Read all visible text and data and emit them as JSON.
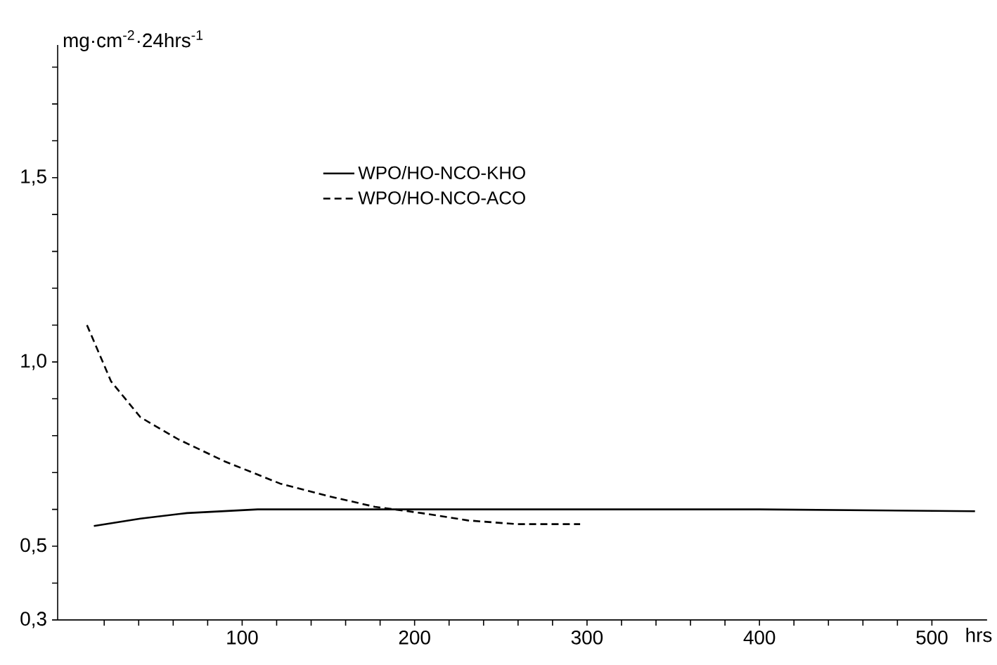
{
  "chart_data": {
    "type": "line",
    "ylabel": "mg·cm$^{-2}$·24hrs$^{-1}$",
    "xlabel": "hrs",
    "xlim": [
      -7,
      532
    ],
    "ylim": [
      0.3,
      1.86
    ],
    "xticks": [
      {
        "value": 20,
        "label": null
      },
      {
        "value": 40,
        "label": null
      },
      {
        "value": 60,
        "label": null
      },
      {
        "value": 80,
        "label": null
      },
      100,
      {
        "value": 120,
        "label": null
      },
      {
        "value": 140,
        "label": null
      },
      {
        "value": 160,
        "label": null
      },
      {
        "value": 180,
        "label": null
      },
      200,
      {
        "value": 220,
        "label": null
      },
      {
        "value": 240,
        "label": null
      },
      {
        "value": 260,
        "label": null
      },
      {
        "value": 280,
        "label": null
      },
      300,
      {
        "value": 320,
        "label": null
      },
      {
        "value": 340,
        "label": null
      },
      {
        "value": 360,
        "label": null
      },
      {
        "value": 380,
        "label": null
      },
      400,
      {
        "value": 420,
        "label": null
      },
      {
        "value": 440,
        "label": null
      },
      {
        "value": 460,
        "label": null
      },
      {
        "value": 480,
        "label": null
      },
      500
    ],
    "yticks": [
      {
        "value": 0.3,
        "label": "0,3"
      },
      {
        "value": 0.4,
        "label": null
      },
      {
        "value": 0.5,
        "label": "0,5"
      },
      {
        "value": 0.6,
        "label": null
      },
      {
        "value": 0.7,
        "label": null
      },
      {
        "value": 0.8,
        "label": null
      },
      {
        "value": 0.9,
        "label": null
      },
      {
        "value": 1.0,
        "label": "1,0"
      },
      {
        "value": 1.1,
        "label": null
      },
      {
        "value": 1.2,
        "label": null
      },
      {
        "value": 1.3,
        "label": null
      },
      {
        "value": 1.4,
        "label": null
      },
      {
        "value": 1.5,
        "label": "1,5"
      },
      {
        "value": 1.6,
        "label": null
      },
      {
        "value": 1.7,
        "label": null
      },
      {
        "value": 1.8,
        "label": null
      }
    ],
    "legend": "top",
    "grid": false,
    "series": [
      {
        "name": "WPO/HO-NCO-KHO",
        "color": "#000000",
        "line_style": "solid",
        "x": [
          14,
          41,
          68,
          109,
          200,
          300,
          400,
          525
        ],
        "values": [
          0.555,
          0.575,
          0.59,
          0.6,
          0.6,
          0.6,
          0.6,
          0.595
        ]
      },
      {
        "name": "WPO/HO-NCO-ACO",
        "color": "#000000",
        "line_style": "dashed",
        "x": [
          10,
          24,
          41,
          63,
          90,
          122,
          150,
          177,
          204,
          231,
          259,
          296
        ],
        "values": [
          1.1,
          0.947,
          0.85,
          0.79,
          0.73,
          0.67,
          0.636,
          0.607,
          0.59,
          0.57,
          0.56,
          0.56
        ]
      }
    ]
  }
}
